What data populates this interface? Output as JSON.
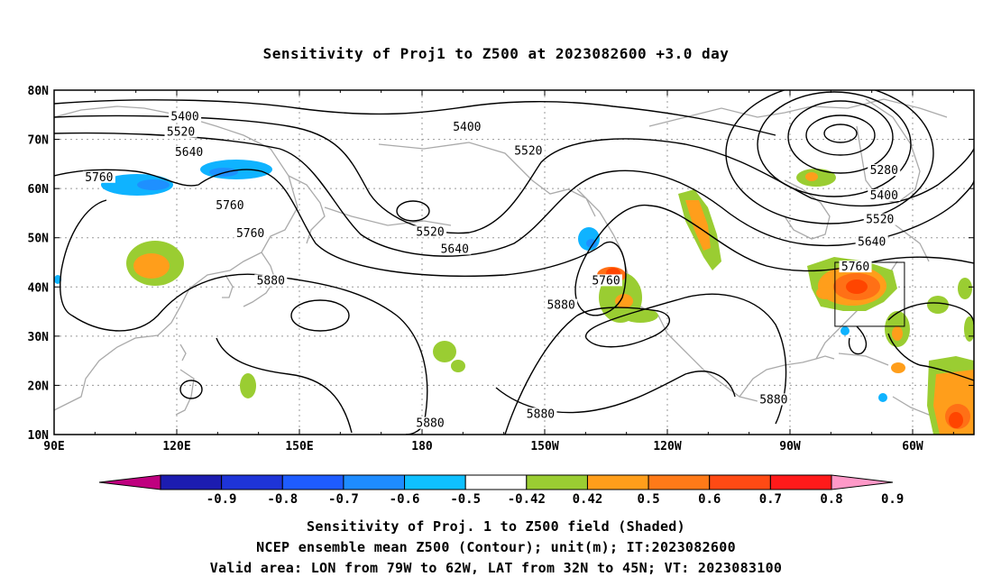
{
  "title": "Sensitivity of Proj1 to Z500 at 2023082600 +3.0 day",
  "map": {
    "lat_labels": [
      "80N",
      "70N",
      "60N",
      "50N",
      "40N",
      "30N",
      "20N",
      "10N"
    ],
    "lon_labels": [
      "90E",
      "120E",
      "150E",
      "180",
      "150W",
      "120W",
      "90W",
      "60W"
    ],
    "contour_labels": [
      {
        "text": "5400",
        "lon": 122,
        "lat": 74.2
      },
      {
        "text": "5520",
        "lon": 121,
        "lat": 71.1
      },
      {
        "text": "5640",
        "lon": 123,
        "lat": 67.0
      },
      {
        "text": "5760",
        "lon": 101,
        "lat": 61.9
      },
      {
        "text": "5760",
        "lon": 133,
        "lat": 56.2
      },
      {
        "text": "5760",
        "lon": 138,
        "lat": 50.5
      },
      {
        "text": "5880",
        "lon": 143,
        "lat": 40.9
      },
      {
        "text": "5400",
        "lon": -169,
        "lat": 72.1
      },
      {
        "text": "5520",
        "lon": -154,
        "lat": 67.3
      },
      {
        "text": "5520",
        "lon": -178,
        "lat": 50.8
      },
      {
        "text": "5640",
        "lon": -172,
        "lat": 47.3
      },
      {
        "text": "5760",
        "lon": -135,
        "lat": 40.9
      },
      {
        "text": "5880",
        "lon": -146,
        "lat": 35.9
      },
      {
        "text": "5880",
        "lon": -178,
        "lat": 11.9
      },
      {
        "text": "5880",
        "lon": -151,
        "lat": 13.8
      },
      {
        "text": "5880",
        "lon": -94,
        "lat": 16.7
      },
      {
        "text": "5280",
        "lon": -67,
        "lat": 63.3
      },
      {
        "text": "5400",
        "lon": -67,
        "lat": 58.2
      },
      {
        "text": "5520",
        "lon": -68,
        "lat": 53.3
      },
      {
        "text": "5640",
        "lon": -70,
        "lat": 48.8
      },
      {
        "text": "5760",
        "lon": -74,
        "lat": 43.7
      },
      {
        "text": "5880",
        "lon": -94,
        "lat": 16.7
      }
    ],
    "valid_box": {
      "lon_west": -79,
      "lon_east": -62,
      "lat_south": 32,
      "lat_north": 45
    },
    "colors": {
      "pos_042_05": "#9acd32",
      "pos_05_06": "#ff9e1b",
      "pos_06_07": "#ff7016",
      "pos_07_08": "#ff4500",
      "pos_08_09": "#ff1a1a",
      "neg_042_05": "#0fb3ff",
      "neg_05_06": "#1e90ff"
    }
  },
  "colorbar": {
    "labels": [
      "-0.9",
      "-0.8",
      "-0.7",
      "-0.6",
      "-0.5",
      "-0.42",
      "0.42",
      "0.5",
      "0.6",
      "0.7",
      "0.8",
      "0.9"
    ],
    "colors": [
      "#bf007f",
      "#1c1cb0",
      "#1e34d8",
      "#1e5cff",
      "#1e8cff",
      "#0fc0ff",
      "#ffffff",
      "#9acd32",
      "#ff9e1b",
      "#ff7a18",
      "#ff4a14",
      "#ff1a1a",
      "#ff99c8"
    ]
  },
  "captions": {
    "line1": "Sensitivity of Proj. 1 to Z500 field (Shaded)",
    "line2": "NCEP ensemble mean Z500 (Contour); unit(m); IT:2023082600",
    "line3": "Valid area: LON from 79W to 62W, LAT from 32N to 45N; VT: 2023083100"
  }
}
